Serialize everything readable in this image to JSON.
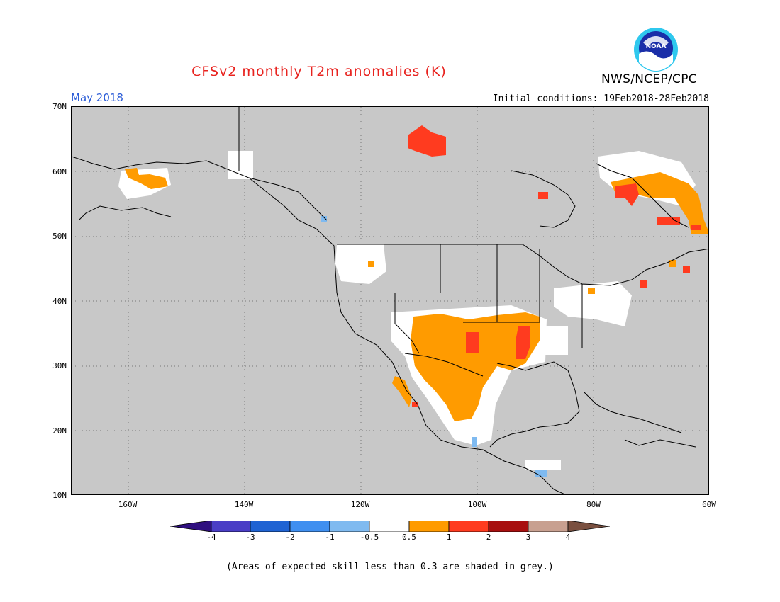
{
  "title": "CFSv2 monthly T2m anomalies (K)",
  "agency": "NWS/NCEP/CPC",
  "logo_text": "NOAA",
  "target_month": "May 2018",
  "initial_conditions": "Initial conditions: 19Feb2018-28Feb2018",
  "lat_labels": [
    "70N",
    "60N",
    "50N",
    "40N",
    "30N",
    "20N",
    "10N"
  ],
  "lon_labels": [
    "160W",
    "140W",
    "120W",
    "100W",
    "80W",
    "60W"
  ],
  "colorbar": {
    "ticks": [
      "-4",
      "-3",
      "-2",
      "-1",
      "-0.5",
      "0.5",
      "1",
      "2",
      "3",
      "4"
    ],
    "colors": [
      "#2f0f7f",
      "#4a3ec6",
      "#1f63d3",
      "#3f8ff0",
      "#7fbaf0",
      "#ffffff",
      "#ff9b00",
      "#ff3b1f",
      "#a80f0f",
      "#c8a090",
      "#7a5040"
    ]
  },
  "note": "(Areas of expected skill less than 0.3 are shaded in grey.)",
  "colors": {
    "title": "#e8231f",
    "month": "#2a5bd7",
    "grey_background": "#c8c8c8",
    "anomaly_warm": "#ff9b00",
    "anomaly_hot": "#ff3b1f",
    "anomaly_neutral": "#ffffff",
    "anomaly_cool": "#7fbaf0"
  }
}
